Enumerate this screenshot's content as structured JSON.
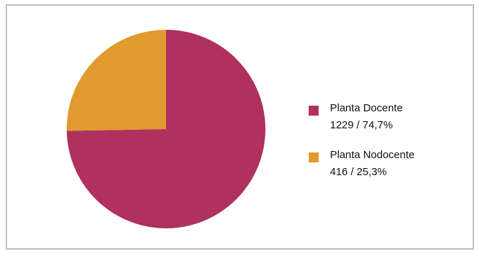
{
  "chart_data": {
    "type": "pie",
    "title": "",
    "legend_position": "right",
    "slices": [
      {
        "name": "Planta Docente",
        "value": 1229,
        "percent": "74,7%",
        "value_label": "1229 / 74,7%",
        "color": "#b0305e"
      },
      {
        "name": "Planta Nodocente",
        "value": 416,
        "percent": "25,3%",
        "value_label": "416 / 25,3%",
        "color": "#e09a2e"
      }
    ]
  }
}
